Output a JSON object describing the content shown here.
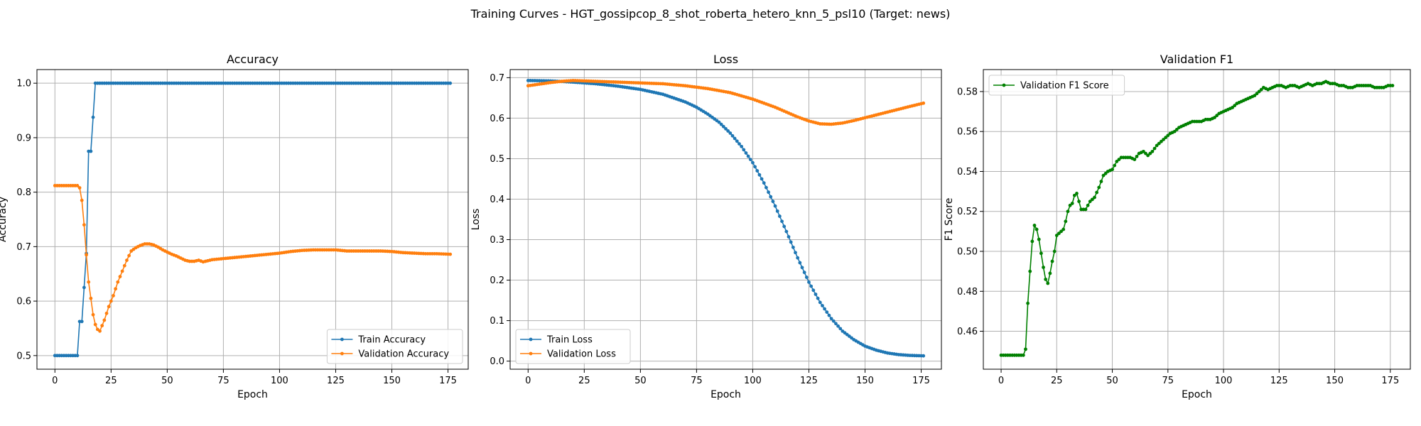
{
  "figure": {
    "title": "Training Curves - HGT_gossipcop_8_shot_roberta_hetero_knn_5_psl10 (Target: news)"
  },
  "colors": {
    "train": "#1f77b4",
    "validation": "#ff7f0e",
    "f1": "#008000",
    "grid": "#b0b0b0"
  },
  "chart_data": [
    {
      "type": "line",
      "title": "Accuracy",
      "xlabel": "Epoch",
      "ylabel": "Accuracy",
      "xlim": [
        -8,
        184
      ],
      "ylim": [
        0.475,
        1.025
      ],
      "xticks": [
        0,
        25,
        50,
        75,
        100,
        125,
        150,
        175
      ],
      "yticks": [
        0.5,
        0.6,
        0.7,
        0.8,
        0.9,
        1.0
      ],
      "ytick_decimals": 1,
      "grid": true,
      "legend_position": "lower right",
      "series": [
        {
          "name": "Train Accuracy",
          "color": "#1f77b4",
          "points": [
            [
              0,
              0.5
            ],
            [
              10,
              0.5
            ],
            [
              11,
              0.5625
            ],
            [
              12,
              0.5625
            ],
            [
              13,
              0.625
            ],
            [
              14,
              0.6875
            ],
            [
              15,
              0.875
            ],
            [
              16,
              0.875
            ],
            [
              17,
              0.9375
            ],
            [
              18,
              1.0
            ],
            [
              176,
              1.0
            ]
          ]
        },
        {
          "name": "Validation Accuracy",
          "color": "#ff7f0e",
          "points": [
            [
              0,
              0.812
            ],
            [
              10,
              0.812
            ],
            [
              11,
              0.808
            ],
            [
              12,
              0.785
            ],
            [
              13,
              0.74
            ],
            [
              14,
              0.685
            ],
            [
              15,
              0.635
            ],
            [
              16,
              0.605
            ],
            [
              17,
              0.575
            ],
            [
              18,
              0.557
            ],
            [
              19,
              0.548
            ],
            [
              20,
              0.545
            ],
            [
              22,
              0.565
            ],
            [
              24,
              0.59
            ],
            [
              26,
              0.61
            ],
            [
              28,
              0.635
            ],
            [
              30,
              0.655
            ],
            [
              32,
              0.675
            ],
            [
              34,
              0.692
            ],
            [
              36,
              0.698
            ],
            [
              38,
              0.702
            ],
            [
              40,
              0.705
            ],
            [
              42,
              0.705
            ],
            [
              44,
              0.703
            ],
            [
              46,
              0.699
            ],
            [
              48,
              0.694
            ],
            [
              50,
              0.69
            ],
            [
              52,
              0.686
            ],
            [
              54,
              0.683
            ],
            [
              56,
              0.679
            ],
            [
              58,
              0.675
            ],
            [
              60,
              0.673
            ],
            [
              62,
              0.673
            ],
            [
              64,
              0.675
            ],
            [
              66,
              0.672
            ],
            [
              68,
              0.674
            ],
            [
              70,
              0.676
            ],
            [
              75,
              0.678
            ],
            [
              80,
              0.68
            ],
            [
              85,
              0.682
            ],
            [
              90,
              0.684
            ],
            [
              95,
              0.686
            ],
            [
              100,
              0.688
            ],
            [
              105,
              0.691
            ],
            [
              110,
              0.693
            ],
            [
              115,
              0.694
            ],
            [
              120,
              0.694
            ],
            [
              125,
              0.694
            ],
            [
              130,
              0.692
            ],
            [
              135,
              0.692
            ],
            [
              140,
              0.692
            ],
            [
              145,
              0.692
            ],
            [
              150,
              0.691
            ],
            [
              155,
              0.689
            ],
            [
              160,
              0.688
            ],
            [
              165,
              0.687
            ],
            [
              170,
              0.687
            ],
            [
              176,
              0.686
            ]
          ]
        }
      ]
    },
    {
      "type": "line",
      "title": "Loss",
      "xlabel": "Epoch",
      "ylabel": "Loss",
      "xlim": [
        -8,
        184
      ],
      "ylim": [
        -0.02,
        0.72
      ],
      "xticks": [
        0,
        25,
        50,
        75,
        100,
        125,
        150,
        175
      ],
      "yticks": [
        0.0,
        0.1,
        0.2,
        0.3,
        0.4,
        0.5,
        0.6,
        0.7
      ],
      "ytick_decimals": 1,
      "grid": true,
      "legend_position": "lower left",
      "series": [
        {
          "name": "Train Loss",
          "color": "#1f77b4",
          "points": [
            [
              0,
              0.693
            ],
            [
              10,
              0.692
            ],
            [
              20,
              0.689
            ],
            [
              30,
              0.685
            ],
            [
              40,
              0.679
            ],
            [
              50,
              0.671
            ],
            [
              60,
              0.659
            ],
            [
              70,
              0.64
            ],
            [
              75,
              0.627
            ],
            [
              80,
              0.61
            ],
            [
              85,
              0.59
            ],
            [
              90,
              0.563
            ],
            [
              95,
              0.53
            ],
            [
              100,
              0.49
            ],
            [
              105,
              0.44
            ],
            [
              110,
              0.383
            ],
            [
              115,
              0.32
            ],
            [
              120,
              0.255
            ],
            [
              125,
              0.195
            ],
            [
              130,
              0.145
            ],
            [
              135,
              0.105
            ],
            [
              140,
              0.074
            ],
            [
              145,
              0.053
            ],
            [
              150,
              0.037
            ],
            [
              155,
              0.027
            ],
            [
              160,
              0.02
            ],
            [
              165,
              0.016
            ],
            [
              170,
              0.014
            ],
            [
              176,
              0.013
            ]
          ]
        },
        {
          "name": "Validation Loss",
          "color": "#ff7f0e",
          "points": [
            [
              0,
              0.68
            ],
            [
              5,
              0.684
            ],
            [
              10,
              0.688
            ],
            [
              15,
              0.691
            ],
            [
              20,
              0.693
            ],
            [
              25,
              0.692
            ],
            [
              30,
              0.691
            ],
            [
              40,
              0.689
            ],
            [
              50,
              0.687
            ],
            [
              60,
              0.685
            ],
            [
              70,
              0.68
            ],
            [
              80,
              0.673
            ],
            [
              90,
              0.663
            ],
            [
              100,
              0.647
            ],
            [
              110,
              0.627
            ],
            [
              115,
              0.615
            ],
            [
              120,
              0.603
            ],
            [
              125,
              0.593
            ],
            [
              130,
              0.586
            ],
            [
              135,
              0.585
            ],
            [
              140,
              0.588
            ],
            [
              145,
              0.594
            ],
            [
              150,
              0.601
            ],
            [
              155,
              0.608
            ],
            [
              160,
              0.615
            ],
            [
              165,
              0.622
            ],
            [
              170,
              0.629
            ],
            [
              176,
              0.637
            ]
          ]
        }
      ]
    },
    {
      "type": "line",
      "title": "Validation F1",
      "xlabel": "Epoch",
      "ylabel": "F1 Score",
      "xlim": [
        -8,
        184
      ],
      "ylim": [
        0.441,
        0.591
      ],
      "xticks": [
        0,
        25,
        50,
        75,
        100,
        125,
        150,
        175
      ],
      "yticks": [
        0.46,
        0.48,
        0.5,
        0.52,
        0.54,
        0.56,
        0.58
      ],
      "ytick_decimals": 2,
      "grid": true,
      "legend_position": "upper left",
      "series": [
        {
          "name": "Validation F1 Score",
          "color": "#008000",
          "points": [
            [
              0,
              0.448
            ],
            [
              10,
              0.448
            ],
            [
              11,
              0.451
            ],
            [
              12,
              0.474
            ],
            [
              13,
              0.49
            ],
            [
              14,
              0.505
            ],
            [
              15,
              0.513
            ],
            [
              16,
              0.511
            ],
            [
              17,
              0.506
            ],
            [
              18,
              0.499
            ],
            [
              19,
              0.492
            ],
            [
              20,
              0.486
            ],
            [
              21,
              0.484
            ],
            [
              22,
              0.489
            ],
            [
              23,
              0.495
            ],
            [
              24,
              0.5
            ],
            [
              25,
              0.508
            ],
            [
              27,
              0.51
            ],
            [
              28,
              0.511
            ],
            [
              29,
              0.515
            ],
            [
              30,
              0.52
            ],
            [
              31,
              0.523
            ],
            [
              32,
              0.524
            ],
            [
              33,
              0.528
            ],
            [
              34,
              0.529
            ],
            [
              35,
              0.525
            ],
            [
              36,
              0.521
            ],
            [
              38,
              0.521
            ],
            [
              40,
              0.525
            ],
            [
              42,
              0.527
            ],
            [
              44,
              0.532
            ],
            [
              46,
              0.538
            ],
            [
              48,
              0.54
            ],
            [
              50,
              0.541
            ],
            [
              52,
              0.545
            ],
            [
              54,
              0.547
            ],
            [
              56,
              0.547
            ],
            [
              58,
              0.547
            ],
            [
              60,
              0.546
            ],
            [
              62,
              0.549
            ],
            [
              64,
              0.55
            ],
            [
              66,
              0.548
            ],
            [
              68,
              0.55
            ],
            [
              70,
              0.553
            ],
            [
              72,
              0.555
            ],
            [
              74,
              0.557
            ],
            [
              76,
              0.559
            ],
            [
              78,
              0.56
            ],
            [
              80,
              0.562
            ],
            [
              82,
              0.563
            ],
            [
              84,
              0.564
            ],
            [
              86,
              0.565
            ],
            [
              88,
              0.565
            ],
            [
              90,
              0.565
            ],
            [
              92,
              0.566
            ],
            [
              94,
              0.566
            ],
            [
              96,
              0.567
            ],
            [
              98,
              0.569
            ],
            [
              100,
              0.57
            ],
            [
              102,
              0.571
            ],
            [
              104,
              0.572
            ],
            [
              106,
              0.574
            ],
            [
              108,
              0.575
            ],
            [
              110,
              0.576
            ],
            [
              112,
              0.577
            ],
            [
              114,
              0.578
            ],
            [
              116,
              0.58
            ],
            [
              118,
              0.582
            ],
            [
              120,
              0.581
            ],
            [
              122,
              0.582
            ],
            [
              124,
              0.583
            ],
            [
              126,
              0.583
            ],
            [
              128,
              0.582
            ],
            [
              130,
              0.583
            ],
            [
              132,
              0.583
            ],
            [
              134,
              0.582
            ],
            [
              136,
              0.583
            ],
            [
              138,
              0.584
            ],
            [
              140,
              0.583
            ],
            [
              142,
              0.584
            ],
            [
              144,
              0.584
            ],
            [
              146,
              0.585
            ],
            [
              148,
              0.584
            ],
            [
              150,
              0.584
            ],
            [
              152,
              0.583
            ],
            [
              154,
              0.583
            ],
            [
              156,
              0.582
            ],
            [
              158,
              0.582
            ],
            [
              160,
              0.583
            ],
            [
              162,
              0.583
            ],
            [
              164,
              0.583
            ],
            [
              166,
              0.583
            ],
            [
              168,
              0.582
            ],
            [
              170,
              0.582
            ],
            [
              172,
              0.582
            ],
            [
              174,
              0.583
            ],
            [
              176,
              0.583
            ]
          ]
        }
      ]
    }
  ]
}
